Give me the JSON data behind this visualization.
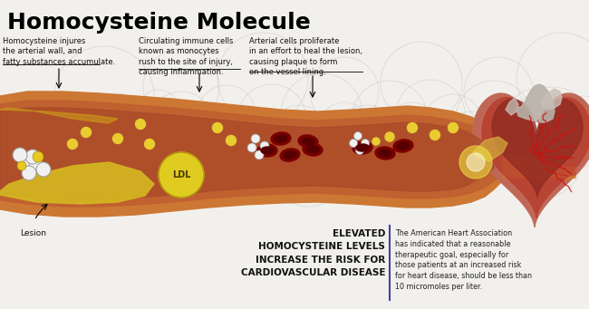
{
  "title": "Homocysteine Molecule",
  "bg_color": "#f2f0ec",
  "annotation1": "Homocysteine injures\nthe arterial wall, and\nfatty substances accumulate.",
  "annotation2": "Circulating immune cells\nknown as monocytes\nrush to the site of injury,\ncausing inflammation.",
  "annotation3": "Arterial cells proliferate\nin an effort to heal the lesion,\ncausing plaque to form\non the vessel lining.",
  "lesion_label": "Lesion",
  "ldl_label": "LDL",
  "elevated_text": "ELEVATED\nHOMOCYSTEINE LEVELS\nINCREASE THE RISK FOR\nCARDIOVASCULAR DISEASE",
  "aha_text": "The American Heart Association\nhas indicated that a reasonable\ntherapeutic goal, especially for\nthose patients at an increased risk\nfor heart disease, should be less than\n10 micromoles per liter.",
  "artery_outer": "#cc7733",
  "artery_inner_top": "#c85030",
  "artery_inner_bot": "#b84020",
  "lesion_yellow": "#e8d040",
  "rbc_color": "#7a0000",
  "rbc_inner": "#550000",
  "fat_color": "#e8cc30",
  "mol_color": "#f0f0f0",
  "divider_color": "#4040aa",
  "title_color": "#000000",
  "annot_color": "#111111",
  "elev_color": "#111111",
  "aha_color": "#222222",
  "heart_main": "#b83020",
  "heart_dark": "#881818",
  "heart_light": "#d06050",
  "vessel_color": "#d09060",
  "aorta_color": "#c8c0b8"
}
